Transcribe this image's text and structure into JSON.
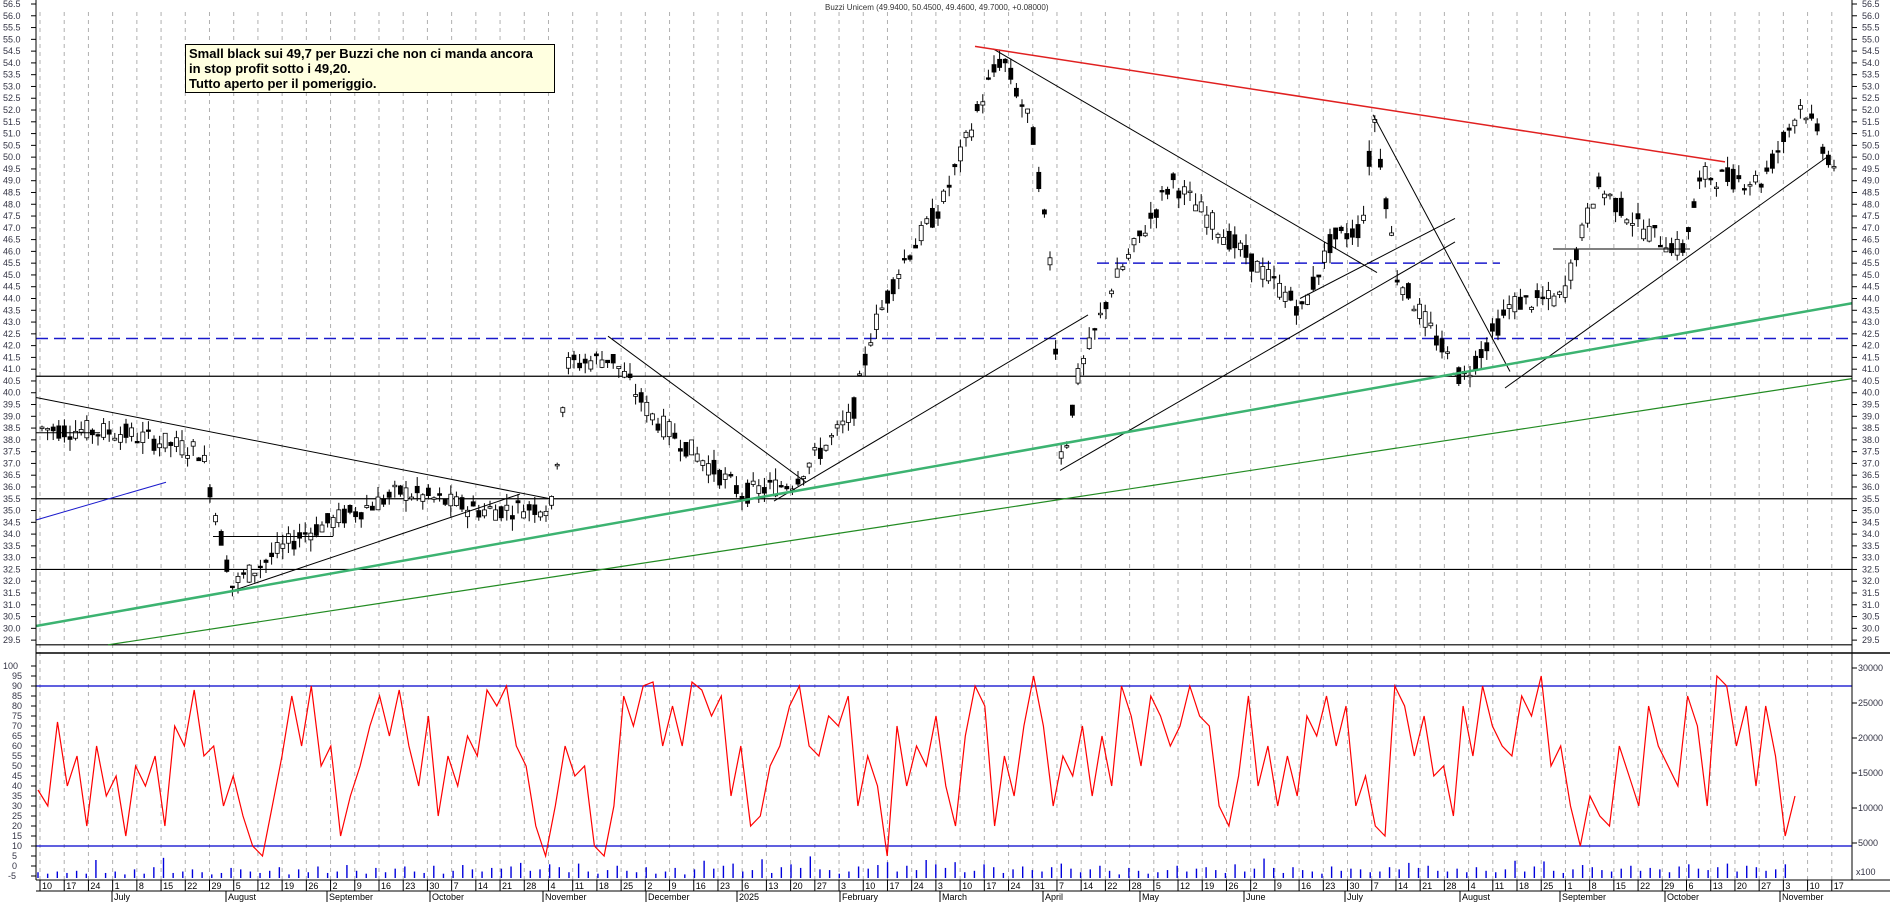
{
  "title": "Buzzi Unicem (49.9400, 50.4500, 49.4600, 49.7000, +0.08000)",
  "annotation": {
    "lines": [
      "Small black sui 49,7 per Buzzi che non ci manda ancora",
      "in stop profit sotto i 49,20.",
      "Tutto aperto per il pomeriggio."
    ],
    "background": "#ffffe0"
  },
  "colors": {
    "grid": "#b0b0b0",
    "candle_up": "#ffffff",
    "candle_down": "#000000",
    "red_trendline": "#e02020",
    "green_channel": "#3cb371",
    "green_thin": "#228b22",
    "blue_dashed": "#1a1acc",
    "oscillator": "#ff0000",
    "oscillator_levels": "#0000cc",
    "volume": "#0000dd"
  },
  "volume_unit_label": "x100",
  "chart_data": [
    {
      "type": "candlestick",
      "title": "Buzzi Unicem (49.9400, 50.4500, 49.4600, 49.7000, +0.08000)",
      "last": {
        "open": 49.94,
        "high": 50.45,
        "low": 49.46,
        "close": 49.7,
        "change": 0.08
      },
      "ylim": [
        29.5,
        56.5
      ],
      "y_ticks": [
        56.5,
        56.0,
        55.5,
        55.0,
        54.5,
        54.0,
        53.5,
        53.0,
        52.5,
        52.0,
        51.5,
        51.0,
        50.5,
        50.0,
        49.5,
        49.0,
        48.5,
        48.0,
        47.5,
        47.0,
        46.5,
        46.0,
        45.5,
        45.0,
        44.5,
        44.0,
        43.5,
        43.0,
        42.5,
        42.0,
        41.5,
        41.0,
        40.5,
        40.0,
        39.5,
        39.0,
        38.5,
        38.0,
        37.5,
        37.0,
        36.5,
        36.0,
        35.5,
        35.0,
        34.5,
        34.0,
        33.5,
        33.0,
        32.5,
        32.0,
        31.5,
        31.0,
        30.5,
        30.0,
        29.5
      ],
      "x_day_ticks": [
        "10",
        "17",
        "24",
        "1",
        "8",
        "15",
        "22",
        "29",
        "5",
        "12",
        "19",
        "26",
        "2",
        "9",
        "16",
        "23",
        "30",
        "7",
        "14",
        "21",
        "28",
        "4",
        "11",
        "18",
        "25",
        "2",
        "9",
        "16",
        "23",
        "6",
        "13",
        "20",
        "27",
        "3",
        "10",
        "17",
        "24",
        "3",
        "10",
        "17",
        "24",
        "31",
        "7",
        "14",
        "22",
        "28",
        "5",
        "12",
        "19",
        "26",
        "2",
        "9",
        "16",
        "23",
        "30",
        "7",
        "14",
        "21",
        "28",
        "4",
        "11",
        "18",
        "25",
        "1",
        "8",
        "15",
        "22",
        "29",
        "6",
        "13",
        "20",
        "27",
        "3",
        "10",
        "17"
      ],
      "x_month_ticks": [
        "July",
        "August",
        "September",
        "October",
        "November",
        "December",
        "2025",
        "February",
        "March",
        "April",
        "May",
        "June",
        "July",
        "August",
        "September",
        "October",
        "November"
      ],
      "horizontal_levels": [
        {
          "price": 42.3,
          "style": "blue dashed"
        },
        {
          "price": 45.5,
          "style": "blue dashed (partial, May-Aug 2025)"
        },
        {
          "price": 40.7,
          "style": "black solid"
        },
        {
          "price": 35.5,
          "style": "black solid"
        },
        {
          "price": 32.5,
          "style": "black solid"
        },
        {
          "price": 29.3,
          "style": "black solid"
        }
      ],
      "trendlines": [
        {
          "name": "red resistance",
          "from": [
            "2025-03-10",
            54.7
          ],
          "to": [
            "2025-10-10",
            49.8
          ],
          "color": "red"
        },
        {
          "name": "green channel (thick)",
          "from": [
            "2024-06-10",
            30.1
          ],
          "to": [
            "2025-11-17",
            43.8
          ],
          "color": "green"
        },
        {
          "name": "green channel (thin)",
          "from": [
            "2024-06-24",
            29.3
          ],
          "to": [
            "2025-11-17",
            40.6
          ],
          "color": "green"
        },
        {
          "name": "rising support 2025",
          "from": [
            "2025-08-11",
            40.2
          ],
          "to": [
            "2025-11-10",
            50.0
          ],
          "color": "black"
        }
      ],
      "key_points": [
        {
          "date": "2024-07 start",
          "price": 38.5
        },
        {
          "date": "2024-08-05 low",
          "price": 31.6
        },
        {
          "date": "2024-11-18 high",
          "price": 42.4
        },
        {
          "date": "2024-12-30 low",
          "price": 35.5
        },
        {
          "date": "2025-03-14 high",
          "price": 54.7
        },
        {
          "date": "2025-04-07 low",
          "price": 36.6
        },
        {
          "date": "2025-07-14 high",
          "price": 51.8
        },
        {
          "date": "2025-08-04 low",
          "price": 40.3
        },
        {
          "date": "2025-10-30 high",
          "price": 52.6
        },
        {
          "date": "2025-11-05 last",
          "price": 49.7
        }
      ]
    },
    {
      "type": "line",
      "title": "Oscillator (stochastic-type) with volume",
      "ylim": [
        -5,
        100
      ],
      "y_ticks": [
        100,
        95,
        90,
        85,
        80,
        75,
        70,
        65,
        60,
        55,
        50,
        45,
        40,
        35,
        30,
        25,
        20,
        15,
        10,
        5,
        0,
        -5
      ],
      "levels": [
        90,
        10
      ],
      "volume_axis": {
        "ticks": [
          30000,
          25000,
          20000,
          15000,
          10000,
          5000
        ],
        "unit": "x100"
      },
      "values": [
        38,
        30,
        72,
        40,
        55,
        20,
        60,
        35,
        45,
        15,
        50,
        40,
        55,
        20,
        70,
        60,
        88,
        55,
        60,
        30,
        45,
        25,
        10,
        5,
        30,
        55,
        85,
        60,
        90,
        50,
        60,
        15,
        35,
        50,
        70,
        85,
        65,
        88,
        60,
        40,
        75,
        25,
        55,
        40,
        65,
        55,
        88,
        80,
        90,
        60,
        50,
        20,
        5,
        30,
        60,
        45,
        50,
        10,
        5,
        30,
        85,
        70,
        90,
        92,
        60,
        80,
        60,
        92,
        88,
        75,
        85,
        35,
        60,
        20,
        25,
        50,
        60,
        80,
        90,
        60,
        55,
        75,
        70,
        85,
        30,
        55,
        40,
        5,
        70,
        40,
        60,
        50,
        75,
        40,
        20,
        65,
        90,
        80,
        20,
        55,
        35,
        70,
        95,
        70,
        30,
        55,
        45,
        70,
        35,
        65,
        40,
        90,
        75,
        50,
        85,
        75,
        60,
        70,
        90,
        75,
        70,
        30,
        20,
        45,
        85,
        40,
        60,
        30,
        55,
        35,
        75,
        65,
        85,
        60,
        80,
        30,
        45,
        20,
        15,
        90,
        80,
        55,
        75,
        45,
        50,
        25,
        80,
        55,
        90,
        70,
        60,
        55,
        85,
        75,
        95,
        50,
        60,
        30,
        10,
        35,
        25,
        20,
        60,
        45,
        30,
        80,
        60,
        50,
        40,
        85,
        70,
        30,
        95,
        90,
        60,
        80,
        40,
        80,
        55,
        15,
        35
      ],
      "volume_values_hundreds": [
        800,
        600,
        900,
        700,
        1000,
        600,
        2500,
        700,
        900,
        500,
        1200,
        600,
        1500,
        2800,
        700,
        900,
        1200,
        800,
        500,
        700,
        1400,
        1200,
        900,
        700,
        1000,
        1500,
        500,
        1200,
        800,
        1600,
        700,
        900,
        1800,
        1000,
        600,
        1400,
        800,
        1300,
        1600,
        900,
        700,
        1700,
        600,
        1000,
        1800,
        1200,
        900,
        1400,
        1300,
        1600,
        2100,
        1000,
        1200,
        1900,
        1500,
        800,
        2000,
        900,
        600,
        1100,
        1700,
        1000,
        800,
        1500,
        600,
        900,
        1400,
        500,
        1200,
        2400,
        1300,
        1700,
        2000,
        900,
        1100,
        2600,
        700,
        1500,
        1900,
        1400,
        3000,
        1200,
        1100,
        600,
        900,
        1600,
        1300,
        1800,
        2200,
        900,
        1700,
        1100,
        2500,
        1900,
        1400,
        2200,
        800,
        1000,
        1900,
        1500,
        700,
        1200,
        1600,
        1100,
        900,
        1500,
        2000,
        1300,
        800,
        1200,
        1700,
        1000,
        500,
        1400,
        1000,
        600,
        800,
        1100,
        1700,
        900,
        1300,
        1500,
        1100,
        700,
        1900,
        900,
        1300,
        2700,
        1400,
        700,
        1500,
        1100,
        900,
        600,
        1600,
        1000,
        1300,
        1200,
        800,
        900,
        1500,
        1200,
        2100,
        1400,
        1700,
        1000,
        900,
        1300,
        800,
        1500,
        1000,
        800,
        1200,
        2400,
        900,
        1600,
        2300,
        1000,
        700,
        1200,
        1800,
        1500,
        1100,
        900,
        1300,
        1700,
        1000,
        1400,
        1200,
        800,
        1600,
        1900,
        1300,
        1100,
        1500,
        2000,
        900,
        1700,
        1500,
        1000,
        1200,
        1900
      ]
    }
  ]
}
